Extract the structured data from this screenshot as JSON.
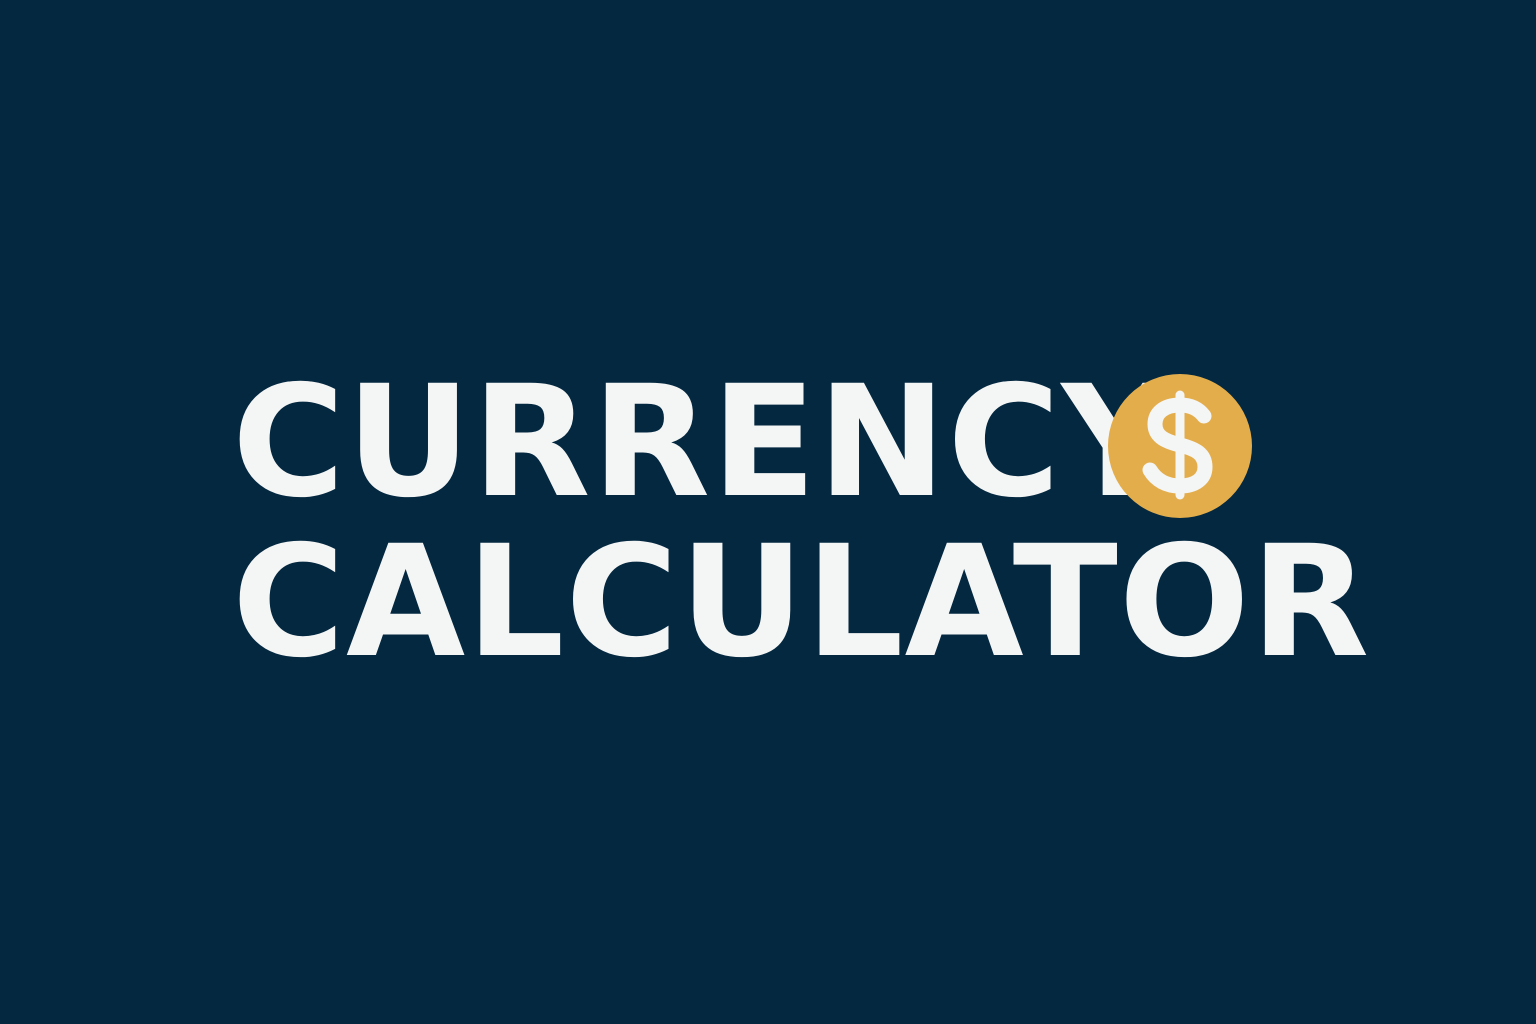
{
  "title": {
    "line1": "CURRENCY",
    "line2": "CALCULATOR"
  },
  "icon": {
    "name": "dollar-coin-icon",
    "coin_color": "#e3ad4c",
    "symbol_color": "#f4f5f5"
  },
  "colors": {
    "background": "#032840",
    "text": "#f4f5f5"
  }
}
